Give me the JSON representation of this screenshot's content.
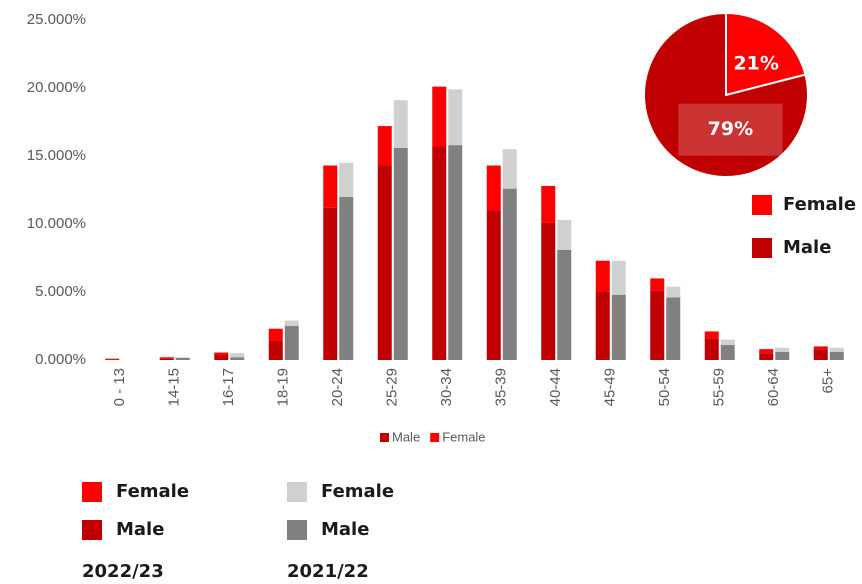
{
  "chart_data": [
    {
      "type": "bar",
      "stacked": true,
      "categories": [
        "0 - 13",
        "14-15",
        "16-17",
        "18-19",
        "20-24",
        "25-29",
        "30-34",
        "35-39",
        "40-44",
        "45-49",
        "50-54",
        "55-59",
        "60-64",
        "65+"
      ],
      "series": [
        {
          "name": "Male",
          "stack": "2022/23",
          "color": "#c00000",
          "values": [
            0.05,
            0.1,
            0.4,
            1.4,
            11.2,
            14.3,
            15.7,
            11.0,
            10.1,
            5.0,
            5.1,
            1.6,
            0.5,
            0.8
          ]
        },
        {
          "name": "Female",
          "stack": "2022/23",
          "color": "#ff0000",
          "values": [
            0.05,
            0.1,
            0.15,
            0.9,
            3.1,
            2.9,
            4.4,
            3.3,
            2.7,
            2.3,
            0.9,
            0.5,
            0.3,
            0.2
          ]
        },
        {
          "name": "Male",
          "stack": "2021/22",
          "color": "#808080",
          "values": [
            0,
            0.15,
            0.2,
            2.5,
            12.0,
            15.6,
            15.8,
            12.6,
            8.1,
            4.8,
            4.6,
            1.1,
            0.6,
            0.6
          ]
        },
        {
          "name": "Female",
          "stack": "2021/22",
          "color": "#d0d0d0",
          "values": [
            0,
            0.05,
            0.3,
            0.4,
            2.5,
            3.5,
            4.1,
            2.9,
            2.2,
            2.5,
            0.8,
            0.4,
            0.3,
            0.3
          ]
        }
      ],
      "ylim": [
        0,
        25
      ],
      "yticks": [
        {
          "value": 0,
          "label": "0.000%"
        },
        {
          "value": 5,
          "label": "5.000%"
        },
        {
          "value": 10,
          "label": "10.000%"
        },
        {
          "value": 15,
          "label": "15.000%"
        },
        {
          "value": 20,
          "label": "20.000%"
        },
        {
          "value": 25,
          "label": "25.000%"
        }
      ],
      "grid": false
    },
    {
      "type": "pie",
      "categories": [
        "Female",
        "Male"
      ],
      "values": [
        21,
        79
      ],
      "value_labels": [
        "21%",
        "79%"
      ],
      "colors": [
        "#ff0000",
        "#c00000"
      ]
    }
  ]
}
